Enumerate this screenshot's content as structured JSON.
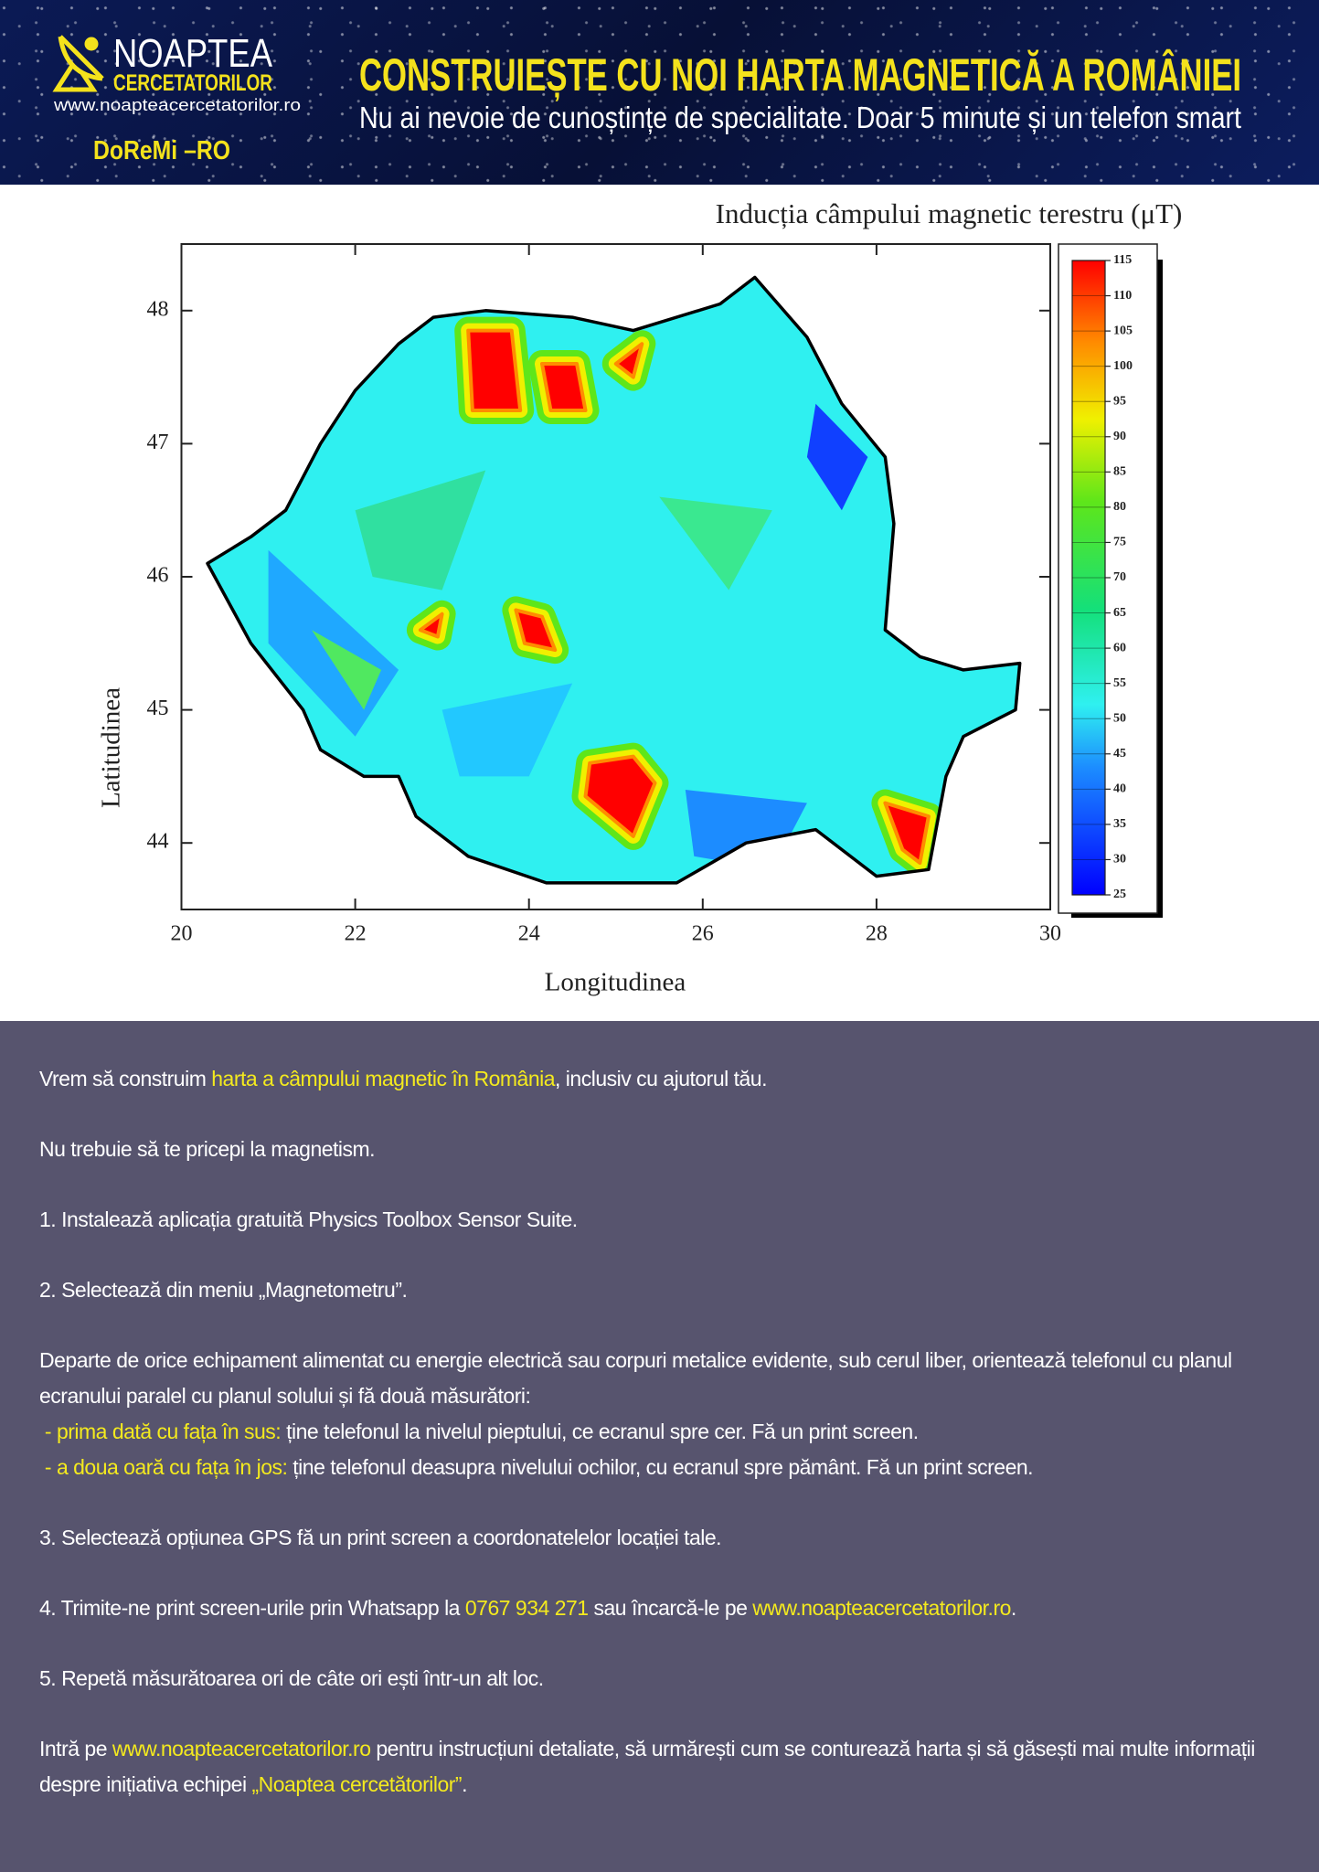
{
  "header": {
    "logo_title": "NOAPTEA",
    "logo_subtitle": "CERCETATORILOR",
    "logo_url": "www.noapteacercetatorilor.ro",
    "project": "DoReMi –RO",
    "title": "CONSTRUIEȘTE CU NOI HARTA MAGNETICĂ A ROMÂNIEI",
    "subtitle": "Nu ai nevoie de cunoștințe de specialitate. Doar 5 minute și un telefon smart"
  },
  "chart_data": {
    "type": "contour",
    "title": "Inducția câmpului magnetic terestru (μT)",
    "x_label": "Longitudinea",
    "y_label": "Latitudinea",
    "xlim": [
      20,
      30
    ],
    "xticks": [
      20,
      22,
      24,
      26,
      28,
      30
    ],
    "ylim": [
      43.5,
      48.5
    ],
    "yticks": [
      44,
      45,
      46,
      47,
      48
    ],
    "colorbar_lim": [
      25,
      115
    ],
    "colorbar_ticks": [
      25,
      30,
      35,
      40,
      45,
      50,
      55,
      60,
      65,
      70,
      75,
      80,
      85,
      90,
      95,
      100,
      105,
      110,
      115
    ]
  },
  "body": {
    "paragraphs": [
      [
        "Vrem să construim ",
        "harta a câmpului magnetic în România",
        ", inclusiv cu ajutorul tău."
      ],
      [
        "Nu trebuie să te pricepi la magnetism."
      ],
      [
        "1. Instalează aplicația gratuită Physics Toolbox Sensor Suite."
      ],
      [
        "2. Selectează din meniu „Magnetometru”."
      ],
      [
        "Departe de orice echipament alimentat cu energie electrică sau corpuri metalice evidente, sub cerul liber, orientează telefonul cu planul ecranului paralel cu planul solului și fă două măsurători:",
        " - prima dată cu fața în sus:",
        " ține telefonul la nivelul pieptului, ce ecranul spre cer. Fă un print screen.",
        " - a doua oară cu fața în jos:",
        " ține telefonul deasupra nivelului ochilor, cu ecranul spre pământ. Fă un print screen."
      ],
      [
        "3. Selectează opțiunea GPS fă un print screen a coordonatelelor locației tale."
      ],
      [
        "4. Trimite-ne print screen-urile prin Whatsapp la ",
        "0767 934 271",
        " sau încarcă-le pe ",
        "www.noapteacercetatorilor.ro",
        "."
      ],
      [
        "5. Repetă măsurătoarea ori de câte ori ești într-un alt loc."
      ],
      [
        "Intră pe ",
        "www.noapteacercetatorilor.ro",
        " pentru instrucțiuni detaliate, să urmărești cum se conturează harta și să găsești mai multe informații despre inițiativa echipei ",
        "„Noaptea cercetătorilor”",
        "."
      ]
    ]
  }
}
